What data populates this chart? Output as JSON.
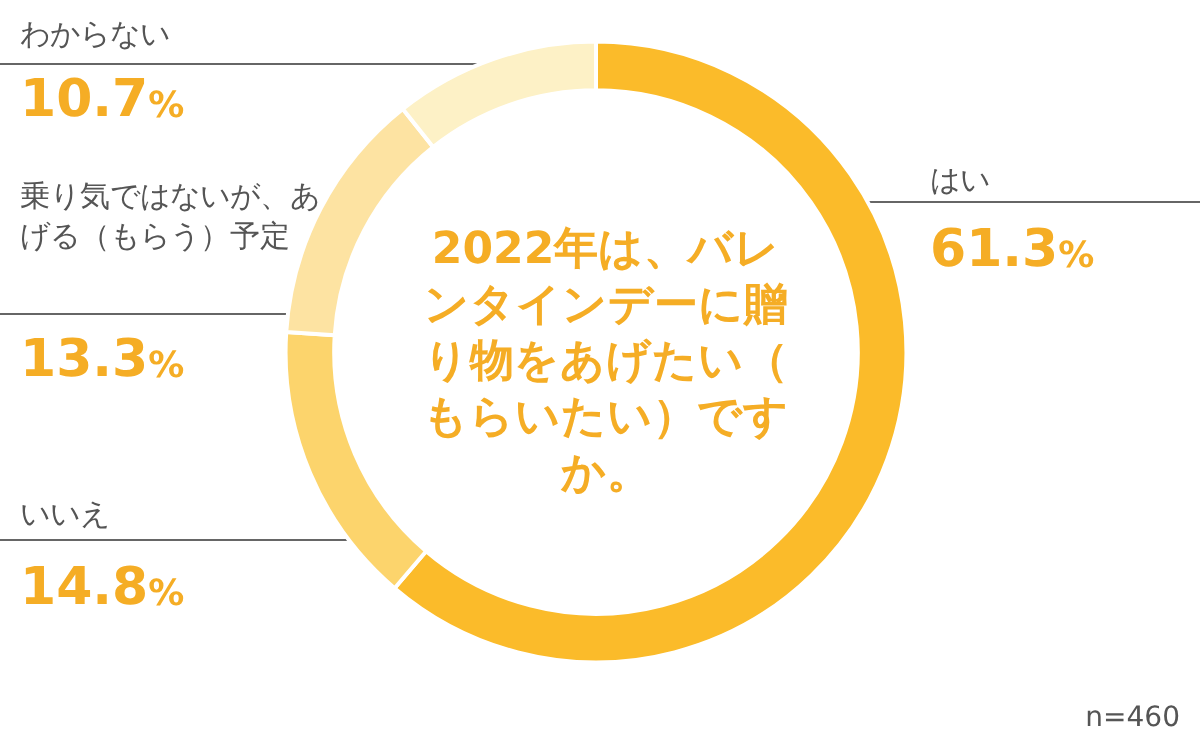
{
  "chart_data": {
    "type": "donut",
    "title": "2022年は、バレンタインデーに贈り物をあげたい（もらいたい）ですか。",
    "categories": [
      "はい",
      "いいえ",
      "乗り気ではないが、あげる（もらう）予定",
      "わからない"
    ],
    "values": [
      61.3,
      14.8,
      13.3,
      10.7
    ],
    "value_labels": [
      "61.3%",
      "14.8%",
      "13.3%",
      "10.7%"
    ],
    "colors": [
      "#fbbb2a",
      "#fcd46c",
      "#fde3a2",
      "#fdf1c6"
    ],
    "annotations": [
      "n=460"
    ],
    "legend": false
  }
}
